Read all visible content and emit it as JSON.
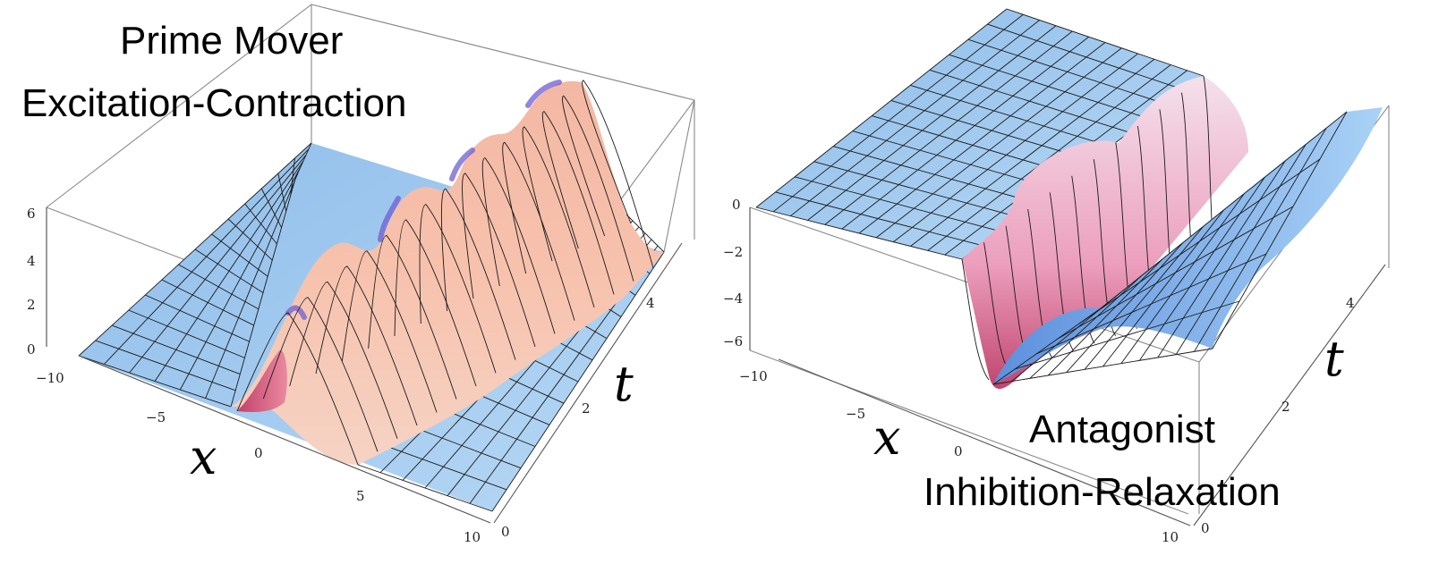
{
  "chart_data": [
    {
      "type": "surface",
      "title_line1": "Prime Mover",
      "title_line2": "Excitation-Contraction",
      "xlabel": "x",
      "ylabel": "t",
      "x_ticks": [
        "−10",
        "−5",
        "0",
        "5",
        "10"
      ],
      "t_ticks": [
        "0",
        "2",
        "4"
      ],
      "z_ticks": [
        "0",
        "2",
        "4",
        "6"
      ],
      "xlim": [
        -10,
        10
      ],
      "tlim": [
        0,
        5
      ],
      "zlim": [
        0,
        6
      ],
      "peak_height": 5.5,
      "colors": {
        "flat": "#9cc7ee",
        "peak": "#f8c3ad",
        "dark": "#c0456e",
        "edge": "#7a64c8"
      }
    },
    {
      "type": "surface",
      "title_line1": "Antagonist",
      "title_line2": "Inhibition-Relaxation",
      "xlabel": "x",
      "ylabel": "t",
      "x_ticks": [
        "−10",
        "−5",
        "0",
        "5",
        "10"
      ],
      "t_ticks": [
        "0",
        "2",
        "4"
      ],
      "z_ticks": [
        "0",
        "−2",
        "−4",
        "−6"
      ],
      "xlim": [
        -10,
        10
      ],
      "tlim": [
        0,
        5
      ],
      "zlim": [
        -7,
        0
      ],
      "trough_depth": -6.5,
      "colors": {
        "flat": "#9cc7ee",
        "trough": "#f0a8c2",
        "dark": "#c0456e",
        "edge": "#5a8ad8"
      }
    }
  ]
}
